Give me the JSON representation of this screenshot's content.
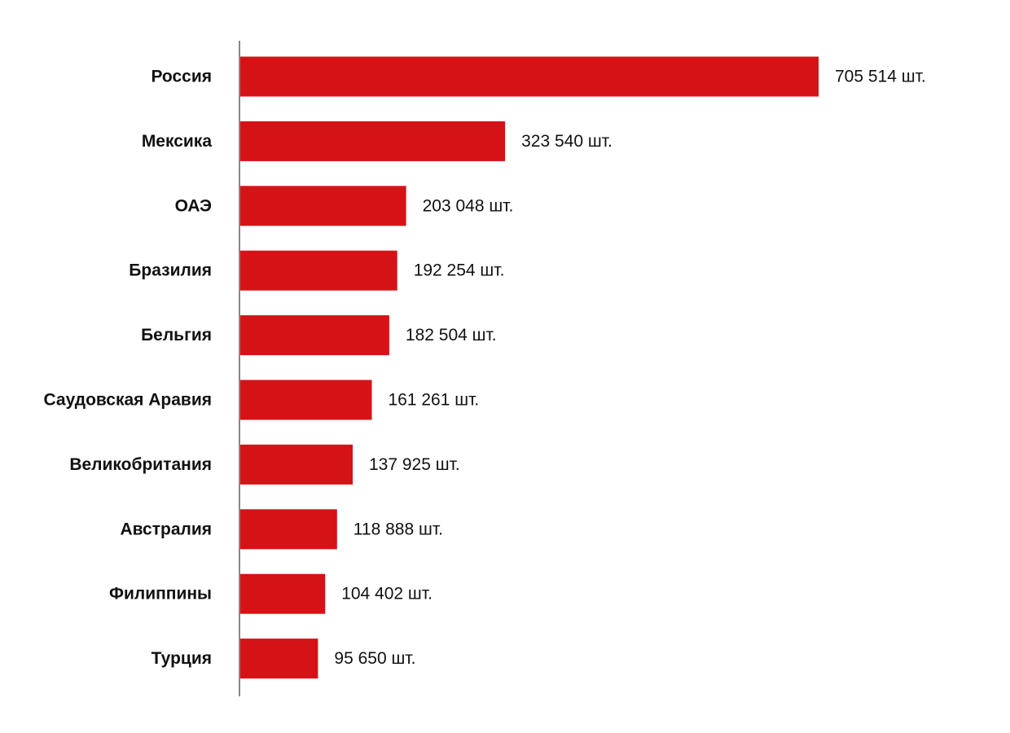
{
  "chart_data": {
    "type": "bar",
    "orientation": "horizontal",
    "categories": [
      "Россия",
      "Мексика",
      "ОАЭ",
      "Бразилия",
      "Бельгия",
      "Саудовская Аравия",
      "Великобритания",
      "Австралия",
      "Филиппины",
      "Турция"
    ],
    "values": [
      705514,
      323540,
      203048,
      192254,
      182504,
      161261,
      137925,
      118888,
      104402,
      95650
    ],
    "value_labels": [
      "705 514 шт.",
      "323 540 шт.",
      "203 048 шт.",
      "192 254 шт.",
      "182 504 шт.",
      "161 261 шт.",
      "137 925 шт.",
      "118 888 шт.",
      "104 402 шт.",
      "95 650 шт."
    ],
    "xlim": [
      0,
      705514
    ],
    "grid": false,
    "legend": "none",
    "bar_color": "#d51317",
    "axis_color": "#888888",
    "text_color": "#111111"
  }
}
